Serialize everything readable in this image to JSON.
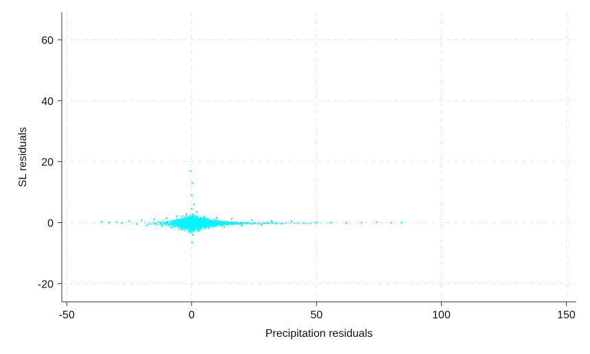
{
  "chart_data": {
    "type": "scatter",
    "xlabel": "Precipitation residuals",
    "ylabel": "SL residuals",
    "xlim": [
      -52,
      154
    ],
    "ylim": [
      -26,
      69
    ],
    "xticks": [
      -50,
      0,
      50,
      100,
      150
    ],
    "yticks": [
      -20,
      0,
      20,
      40,
      60
    ],
    "x_tick_labels": [
      "-50",
      "0",
      "50",
      "100",
      "150"
    ],
    "y_tick_labels": [
      "-20",
      "0",
      "20",
      "40",
      "60"
    ],
    "grid": true,
    "legend": "none",
    "colors": {
      "points": "#00f5ff",
      "grid": "#e8e8e8",
      "axis": "#333333"
    },
    "series": [
      {
        "values": [
          {
            "x": -36,
            "y": 0.3
          },
          {
            "x": -33,
            "y": 0.1
          },
          {
            "x": -30,
            "y": 0.2
          },
          {
            "x": -28,
            "y": -0.1
          },
          {
            "x": -25,
            "y": 0.5
          },
          {
            "x": -22,
            "y": -0.4
          },
          {
            "x": -20,
            "y": 0.8
          },
          {
            "x": -18,
            "y": -0.9
          },
          {
            "x": -15,
            "y": 1.2
          },
          {
            "x": -12,
            "y": -1.1
          },
          {
            "x": -10,
            "y": 1.5
          },
          {
            "x": -8,
            "y": -1.6
          },
          {
            "x": -6,
            "y": 2.1
          },
          {
            "x": -4,
            "y": -2.2
          },
          {
            "x": -2,
            "y": 2.8
          },
          {
            "x": -1,
            "y": -3.0
          },
          {
            "x": 0,
            "y": 4.5
          },
          {
            "x": 0.5,
            "y": -4.0
          },
          {
            "x": 1,
            "y": 6.0
          },
          {
            "x": 0,
            "y": 9.0
          },
          {
            "x": 0.3,
            "y": 13.0
          },
          {
            "x": -0.5,
            "y": 17.0
          },
          {
            "x": 0.2,
            "y": -6.5
          },
          {
            "x": 2,
            "y": 3.5
          },
          {
            "x": 3,
            "y": -2.5
          },
          {
            "x": 5,
            "y": 2.0
          },
          {
            "x": 7,
            "y": -1.8
          },
          {
            "x": 10,
            "y": 1.6
          },
          {
            "x": 13,
            "y": -1.4
          },
          {
            "x": 16,
            "y": 1.2
          },
          {
            "x": 20,
            "y": -1.0
          },
          {
            "x": 24,
            "y": 0.9
          },
          {
            "x": 28,
            "y": -0.7
          },
          {
            "x": 32,
            "y": 0.6
          },
          {
            "x": 36,
            "y": -0.4
          },
          {
            "x": 40,
            "y": 0.4
          },
          {
            "x": 45,
            "y": -0.2
          },
          {
            "x": 50,
            "y": 0.2
          },
          {
            "x": 56,
            "y": 0.1
          },
          {
            "x": 62,
            "y": -0.1
          },
          {
            "x": 68,
            "y": 0.0
          },
          {
            "x": 74,
            "y": 0.1
          },
          {
            "x": 80,
            "y": -0.1
          },
          {
            "x": 84,
            "y": 0.0
          }
        ]
      }
    ]
  }
}
